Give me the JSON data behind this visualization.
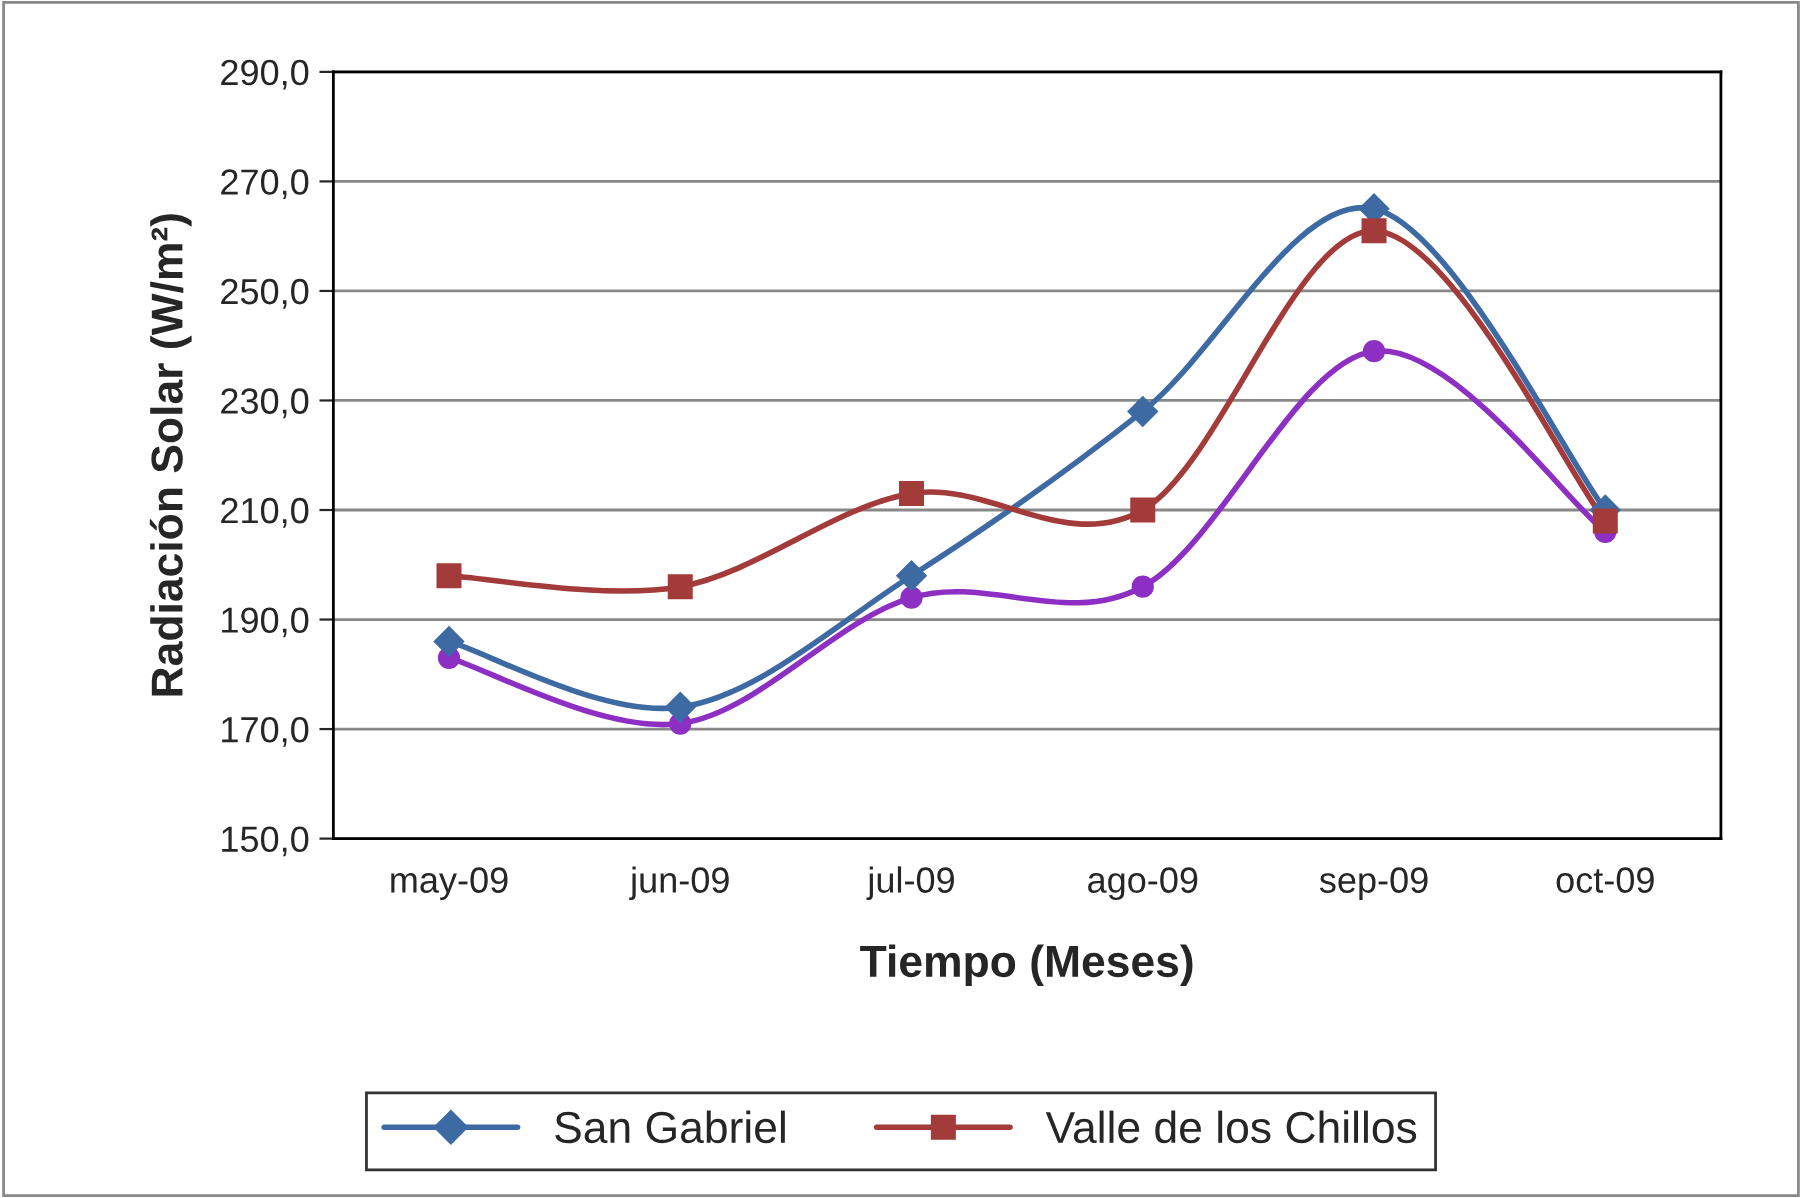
{
  "chart_data": {
    "type": "line",
    "xlabel": "Tiempo (Meses)",
    "ylabel": "Radiación Solar (W/m²)",
    "categories": [
      "may-09",
      "jun-09",
      "jul-09",
      "ago-09",
      "sep-09",
      "oct-09"
    ],
    "series": [
      {
        "color": "#8e2fc4",
        "marker": "circle",
        "values": [
          183,
          171,
          194,
          196,
          239,
          206
        ]
      },
      {
        "name": "San Gabriel",
        "color": "#3e6aa3",
        "marker": "diamond",
        "values": [
          186,
          174,
          198,
          228,
          265,
          210
        ]
      },
      {
        "name": "Valle de los Chillos",
        "color": "#a33b3a",
        "marker": "square",
        "values": [
          198,
          196,
          213,
          210,
          261,
          208
        ]
      }
    ],
    "ylim": [
      150,
      290
    ],
    "yticks": [
      {
        "value": 150,
        "label": "150,0"
      },
      {
        "value": 170,
        "label": "170,0"
      },
      {
        "value": 190,
        "label": "190,0"
      },
      {
        "value": 210,
        "label": "210,0"
      },
      {
        "value": 230,
        "label": "230,0"
      },
      {
        "value": 250,
        "label": "250,0"
      },
      {
        "value": 270,
        "label": "270,0"
      },
      {
        "value": 290,
        "label": "290,0"
      }
    ],
    "grid": "y",
    "legend": "bottom"
  }
}
